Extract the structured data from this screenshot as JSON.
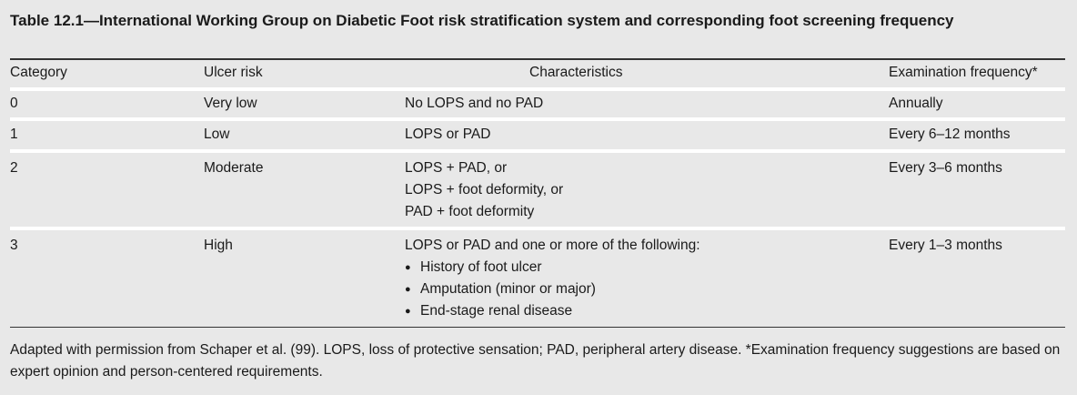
{
  "title": "Table 12.1—International Working Group on Diabetic Foot risk stratification system and corresponding foot screening frequency",
  "headers": [
    "Category",
    "Ulcer risk",
    "Characteristics",
    "Examination frequency*"
  ],
  "rows": [
    {
      "category": "0",
      "risk": "Very low",
      "characteristics": [
        "No LOPS and no PAD"
      ],
      "bullets": [],
      "frequency": "Annually"
    },
    {
      "category": "1",
      "risk": "Low",
      "characteristics": [
        "LOPS or PAD"
      ],
      "bullets": [],
      "frequency": "Every 6–12 months"
    },
    {
      "category": "2",
      "risk": "Moderate",
      "characteristics": [
        "LOPS + PAD, or",
        "LOPS + foot deformity, or",
        "PAD + foot deformity"
      ],
      "bullets": [],
      "frequency": "Every 3–6 months"
    },
    {
      "category": "3",
      "risk": "High",
      "characteristics": [
        "LOPS or PAD and one or more of the following:"
      ],
      "bullets": [
        "History of foot ulcer",
        "Amputation (minor or major)",
        "End-stage renal disease"
      ],
      "frequency": "Every 1–3 months"
    }
  ],
  "footnote": "Adapted with permission from Schaper et al. (99). LOPS, loss of protective sensation; PAD, peripheral artery disease. *Examination frequency suggestions are based on expert opinion and person-centered requirements."
}
